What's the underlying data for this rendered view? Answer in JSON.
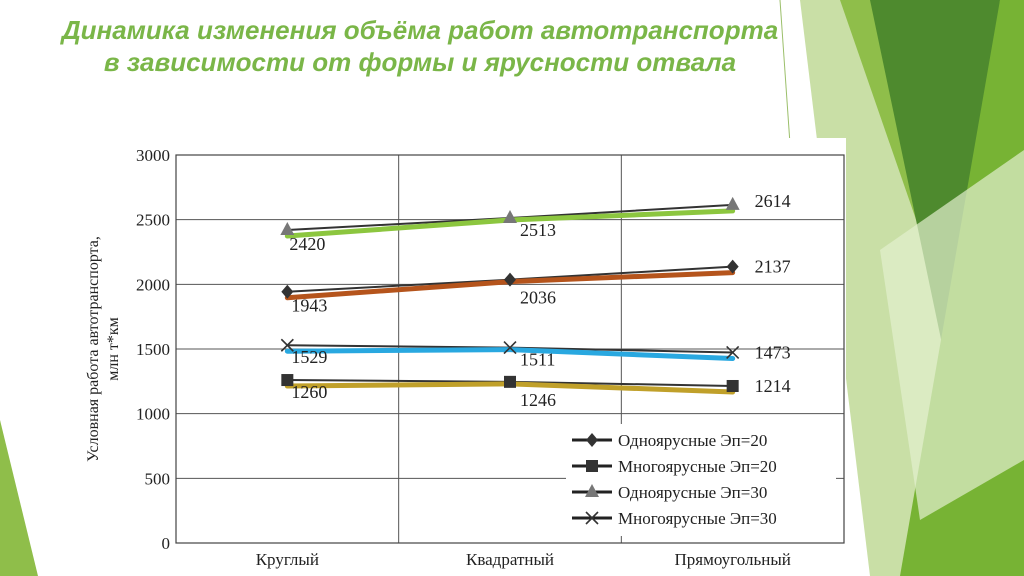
{
  "slide": {
    "title_line1": "Динамика изменения объёма работ автотранспорта",
    "title_line2": "в зависимости от формы и ярусности отвала",
    "accent_color": "#7ab648"
  },
  "chart_data": {
    "type": "line",
    "categories": [
      "Круглый",
      "Квадратный",
      "Прямоугольный"
    ],
    "ylabel_line1": "Условная работа автотранспорта,",
    "ylabel_line2": "млн т*км",
    "ylim": [
      0,
      3000
    ],
    "yticks": [
      0,
      500,
      1000,
      1500,
      2000,
      2500,
      3000
    ],
    "grid": true,
    "legend_position": "bottom-right",
    "series": [
      {
        "name": "Одноярусные Эп=20",
        "marker": "diamond",
        "values": [
          1943,
          2036,
          2137
        ],
        "color": "#b5541c"
      },
      {
        "name": "Многоярусные Эп=20",
        "marker": "square",
        "values": [
          1260,
          1246,
          1214
        ],
        "color": "#c0a02a"
      },
      {
        "name": "Одноярусные Эп=30",
        "marker": "triangle",
        "values": [
          2420,
          2513,
          2614
        ],
        "color": "#8cc63f"
      },
      {
        "name": "Многоярусные Эп=30",
        "marker": "x",
        "values": [
          1529,
          1511,
          1473
        ],
        "color": "#29a8e0"
      }
    ]
  }
}
